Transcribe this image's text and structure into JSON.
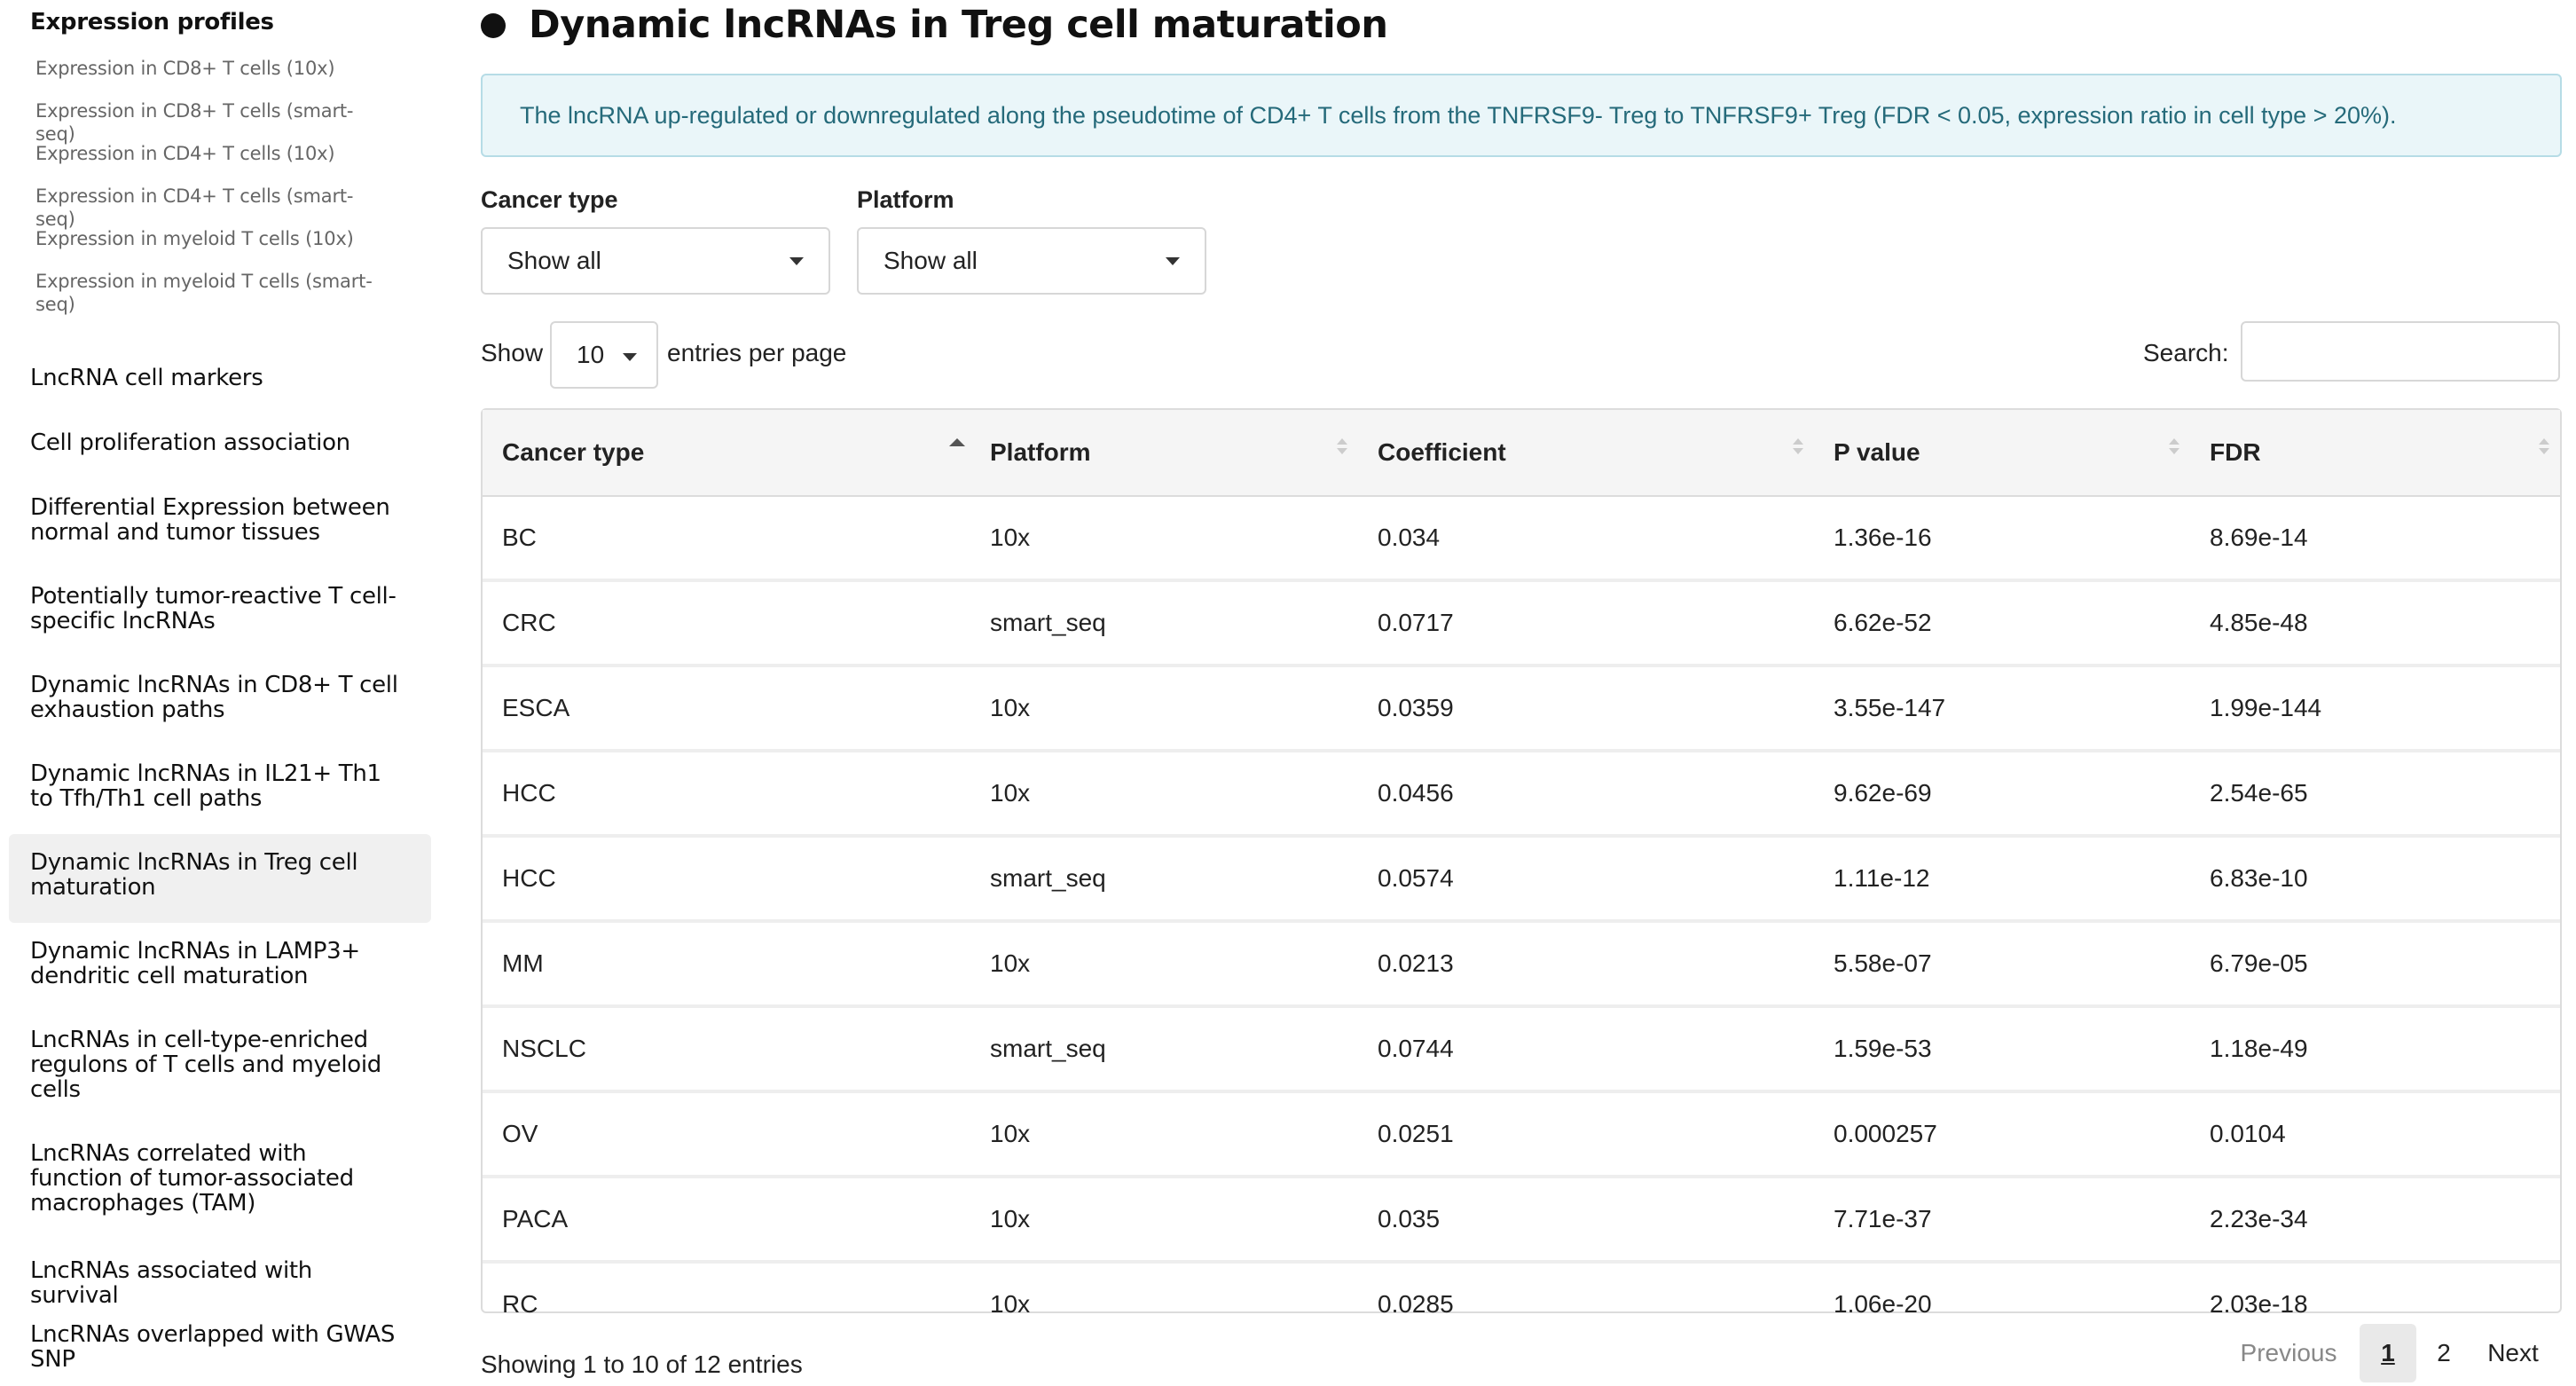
{
  "sidebar": {
    "heading": "Expression profiles",
    "sub_items": [
      "Expression in CD8+ T cells (10x)",
      "Expression in CD8+ T cells (smart-seq)",
      "Expression in CD4+ T cells (10x)",
      "Expression in CD4+ T cells (smart-seq)",
      "Expression in myeloid T cells (10x)",
      "Expression in myeloid T cells (smart-seq)"
    ],
    "items": [
      "LncRNA cell markers",
      "Cell proliferation association",
      "Differential Expression between normal and tumor tissues",
      "Potentially tumor-reactive T cell-specific lncRNAs",
      "Dynamic lncRNAs in CD8+ T cell exhaustion paths",
      "Dynamic lncRNAs in IL21+ Th1 to Tfh/Th1 cell paths",
      "Dynamic lncRNAs in Treg cell maturation",
      "Dynamic lncRNAs in LAMP3+ dendritic cell maturation",
      "LncRNAs in cell-type-enriched regulons of T cells and myeloid cells",
      "LncRNAs correlated with function of tumor-associated macrophages (TAM)",
      "LncRNAs associated with survival",
      "LncRNAs overlapped with GWAS SNP"
    ]
  },
  "page": {
    "title": "Dynamic lncRNAs in Treg cell maturation",
    "info": "The lncRNA up-regulated or downregulated along the pseudotime of CD4+ T cells from the TNFRSF9- Treg to TNFRSF9+ Treg (FDR < 0.05, expression ratio in cell type > 20%)."
  },
  "filters": {
    "cancer_type_label": "Cancer type",
    "cancer_type_value": "Show all",
    "platform_label": "Platform",
    "platform_value": "Show all"
  },
  "length": {
    "show": "Show",
    "value": "10",
    "suffix": "entries per page"
  },
  "search": {
    "label": "Search:",
    "value": ""
  },
  "table": {
    "columns": [
      "Cancer type",
      "Platform",
      "Coefficient",
      "P value",
      "FDR"
    ],
    "rows": [
      [
        "BC",
        "10x",
        "0.034",
        "1.36e-16",
        "8.69e-14"
      ],
      [
        "CRC",
        "smart_seq",
        "0.0717",
        "6.62e-52",
        "4.85e-48"
      ],
      [
        "ESCA",
        "10x",
        "0.0359",
        "3.55e-147",
        "1.99e-144"
      ],
      [
        "HCC",
        "10x",
        "0.0456",
        "9.62e-69",
        "2.54e-65"
      ],
      [
        "HCC",
        "smart_seq",
        "0.0574",
        "1.11e-12",
        "6.83e-10"
      ],
      [
        "MM",
        "10x",
        "0.0213",
        "5.58e-07",
        "6.79e-05"
      ],
      [
        "NSCLC",
        "smart_seq",
        "0.0744",
        "1.59e-53",
        "1.18e-49"
      ],
      [
        "OV",
        "10x",
        "0.0251",
        "0.000257",
        "0.0104"
      ],
      [
        "PACA",
        "10x",
        "0.035",
        "7.71e-37",
        "2.23e-34"
      ],
      [
        "RC",
        "10x",
        "0.0285",
        "1.06e-20",
        "2.03e-18"
      ]
    ]
  },
  "footer": {
    "info": "Showing 1 to 10 of 12 entries",
    "previous": "Previous",
    "page1": "1",
    "page2": "2",
    "next": "Next"
  }
}
